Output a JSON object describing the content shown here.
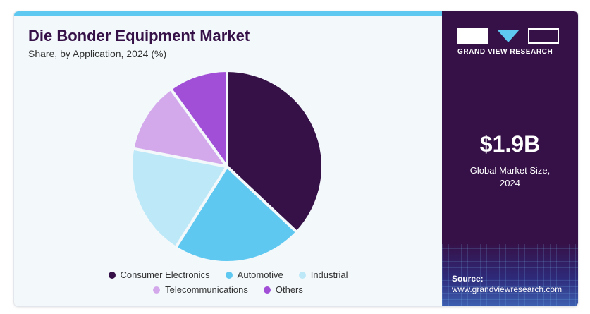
{
  "header": {
    "title": "Die Bonder Equipment Market",
    "subtitle": "Share, by Application, 2024 (%)"
  },
  "chart_data": {
    "type": "pie",
    "categories": [
      "Consumer Electronics",
      "Automotive",
      "Industrial",
      "Telecommunications",
      "Others"
    ],
    "values": [
      37,
      22,
      19,
      12,
      10
    ],
    "colors": [
      "#361148",
      "#5ec8f1",
      "#bde8f8",
      "#d3a9ec",
      "#a24fd8"
    ],
    "legend": "bottom",
    "start_angle": "12 o'clock, clockwise"
  },
  "brand": {
    "name": "GRAND VIEW RESEARCH",
    "logo_icon": "gvr-logo-icon"
  },
  "stat": {
    "value": "$1.9B",
    "label_line1": "Global Market Size,",
    "label_line2": "2024"
  },
  "source": {
    "label": "Source:",
    "url": "www.grandviewresearch.com"
  },
  "colors": {
    "panel": "#361148",
    "accent": "#5ec8f1",
    "background": "#f3f8fb"
  }
}
